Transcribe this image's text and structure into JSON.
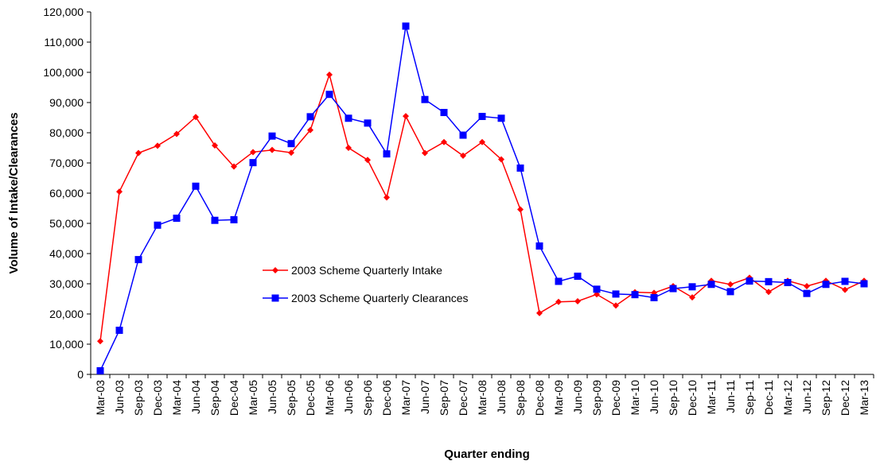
{
  "chart_data": {
    "type": "line",
    "title": "",
    "xlabel": "Quarter ending",
    "ylabel": "Volume of Intake/Clearances",
    "ylim": [
      0,
      120000
    ],
    "y_ticks": [
      0,
      10000,
      20000,
      30000,
      40000,
      50000,
      60000,
      70000,
      80000,
      90000,
      100000,
      110000,
      120000
    ],
    "y_tick_labels": [
      "0",
      "10,000",
      "20,000",
      "30,000",
      "40,000",
      "50,000",
      "60,000",
      "70,000",
      "80,000",
      "90,000",
      "100,000",
      "110,000",
      "120,000"
    ],
    "grid": false,
    "legend_position": "center-left",
    "categories": [
      "Mar-03",
      "Jun-03",
      "Sep-03",
      "Dec-03",
      "Mar-04",
      "Jun-04",
      "Sep-04",
      "Dec-04",
      "Mar-05",
      "Jun-05",
      "Sep-05",
      "Dec-05",
      "Mar-06",
      "Jun-06",
      "Sep-06",
      "Dec-06",
      "Mar-07",
      "Jun-07",
      "Sep-07",
      "Dec-07",
      "Mar-08",
      "Jun-08",
      "Sep-08",
      "Dec-08",
      "Mar-09",
      "Jun-09",
      "Sep-09",
      "Dec-09",
      "Mar-10",
      "Jun-10",
      "Sep-10",
      "Dec-10",
      "Mar-11",
      "Jun-11",
      "Sep-11",
      "Dec-11",
      "Mar-12",
      "Jun-12",
      "Sep-12",
      "Dec-12",
      "Mar-13"
    ],
    "series": [
      {
        "name": "2003 Scheme Quarterly Intake",
        "color": "#ff0000",
        "marker": "diamond",
        "values": [
          11000,
          60500,
          73300,
          75700,
          79600,
          85200,
          75800,
          68800,
          73600,
          74300,
          73400,
          80900,
          99200,
          75000,
          71000,
          58600,
          85500,
          73300,
          76900,
          72400,
          76900,
          71200,
          54600,
          20300,
          24000,
          24200,
          26500,
          22800,
          27200,
          27000,
          29200,
          25500,
          31000,
          29800,
          32000,
          27300,
          31000,
          29200,
          31000,
          28000,
          31000
        ]
      },
      {
        "name": "2003 Scheme Quarterly Clearances",
        "color": "#0000ff",
        "marker": "square",
        "values": [
          1200,
          14600,
          38000,
          49400,
          51700,
          62300,
          51000,
          51200,
          70100,
          78900,
          76400,
          85300,
          92700,
          84800,
          83200,
          73000,
          115300,
          91000,
          86700,
          79200,
          85400,
          84800,
          68300,
          42500,
          30800,
          32500,
          28200,
          26600,
          26400,
          25400,
          28400,
          29000,
          29800,
          27400,
          30900,
          30700,
          30400,
          26800,
          29800,
          30800,
          30000
        ]
      }
    ]
  }
}
